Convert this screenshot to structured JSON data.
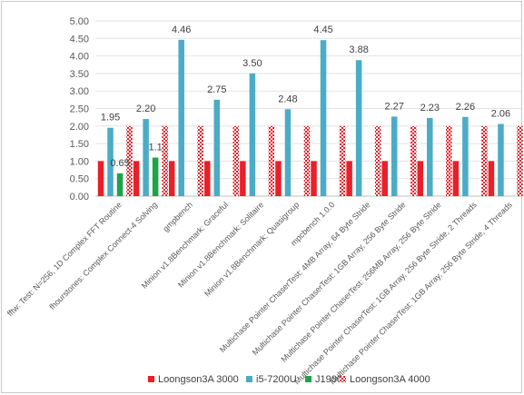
{
  "chart_data": {
    "type": "bar",
    "title": "",
    "xlabel": "",
    "ylabel": "",
    "ylim": [
      0,
      5
    ],
    "yticks": [
      "0.00",
      "0.50",
      "1.00",
      "1.50",
      "2.00",
      "2.50",
      "3.00",
      "3.50",
      "4.00",
      "4.50",
      "5.00"
    ],
    "grid": "horizontal",
    "legend_position": "bottom",
    "categories": [
      "fftw: Test: N=256, 1D Complex FFT Routine",
      "fhourstones: Complex Connect-4 Solving",
      "gmpbench",
      "Minion v1.8Benchmark: Graceful",
      "Minion v1.8Benchmark: Solitaire",
      "Minion v1.8Benchmark: Quasigroup",
      "mpcbench 1.0.0",
      "Multichase Pointer ChaserTest: 4MB Array, 64 Byte Stride",
      "Multichase Pointer ChaserTest: 1GB Array, 256 Byte Stride",
      "Multichase Pointer ChaserTest: 256MB Array, 256 Byte Stride",
      "Multichase Pointer ChaserTest: 1GB Array, 256 Byte Stride, 2 Threads",
      "Multichase Pointer ChaserTest: 1GB Array, 256 Byte Stride, 4 Threads"
    ],
    "series": [
      {
        "name": "Loongson3A 3000",
        "color": "#e8202a",
        "pattern": "solid",
        "values": [
          1,
          1,
          1,
          1,
          1,
          1,
          1,
          1,
          1,
          1,
          1,
          1
        ]
      },
      {
        "name": "i5-7200U",
        "color": "#4bacc6",
        "pattern": "solid",
        "values": [
          1.95,
          2.2,
          4.46,
          2.75,
          3.5,
          2.48,
          4.45,
          3.88,
          2.27,
          2.23,
          2.26,
          2.06
        ]
      },
      {
        "name": "J1900",
        "color": "#1fa34a",
        "pattern": "solid",
        "values": [
          0.65,
          1.1,
          null,
          null,
          null,
          null,
          null,
          null,
          null,
          null,
          null,
          null
        ]
      },
      {
        "name": "Loongson3A 4000",
        "color": "#e8202a",
        "pattern": "checker",
        "values": [
          2,
          2,
          2,
          2,
          2,
          2,
          2,
          2,
          2,
          2,
          2,
          2
        ]
      }
    ],
    "data_labels": {
      "i5-7200U": [
        "1.95",
        "2.20",
        "4.46",
        "2.75",
        "3.50",
        "2.48",
        "4.45",
        "3.88",
        "2.27",
        "2.23",
        "2.26",
        "2.06"
      ],
      "J1900": [
        "0.65",
        "1.1",
        null,
        null,
        null,
        null,
        null,
        null,
        null,
        null,
        null,
        null
      ]
    }
  }
}
